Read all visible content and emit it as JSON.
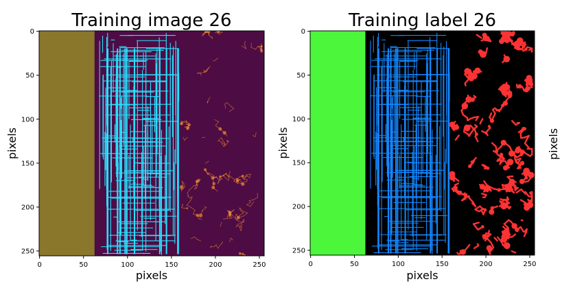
{
  "colors": {
    "image_left_band": "#8a772b",
    "image_background": "#4e0c44",
    "image_lines": "#29e1ff",
    "image_texture": "#ff9a2f",
    "label_left_band": "#4cf63b",
    "label_background": "#000000",
    "label_lines": "#1487ff",
    "label_texture": "#ff3333"
  },
  "chart_data": [
    {
      "type": "image",
      "title": "Training image 26",
      "xlabel": "pixels",
      "ylabel": "pixels",
      "xlim": [
        0,
        255
      ],
      "ylim": [
        255,
        0
      ],
      "xticks": [
        0,
        50,
        100,
        150,
        200,
        250
      ],
      "yticks": [
        0,
        50,
        100,
        150,
        200,
        250
      ],
      "regions": [
        {
          "name": "solid band",
          "x_range": [
            0,
            63
          ],
          "color_key": "image_left_band"
        },
        {
          "name": "grid lines",
          "x_range": [
            63,
            160
          ],
          "color_key": "image_lines"
        },
        {
          "name": "texture",
          "x_range": [
            160,
            255
          ],
          "color_key": "image_texture"
        }
      ]
    },
    {
      "type": "image",
      "title": "Training label 26",
      "xlabel": "pixels",
      "ylabel": "pixels",
      "xlim": [
        0,
        255
      ],
      "ylim": [
        255,
        0
      ],
      "xticks": [
        0,
        50,
        100,
        150,
        200,
        250
      ],
      "yticks": [
        0,
        50,
        100,
        150,
        200,
        250
      ],
      "regions": [
        {
          "name": "solid band",
          "x_range": [
            0,
            63
          ],
          "color_key": "label_left_band"
        },
        {
          "name": "grid lines",
          "x_range": [
            63,
            160
          ],
          "color_key": "label_lines"
        },
        {
          "name": "texture",
          "x_range": [
            160,
            255
          ],
          "color_key": "label_texture"
        }
      ]
    }
  ],
  "orphan_ylabel": "pixels"
}
